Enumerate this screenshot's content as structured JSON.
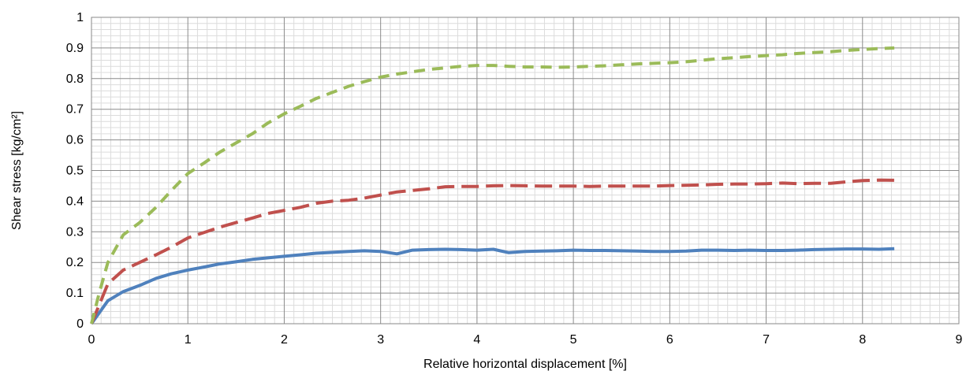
{
  "chart_data": {
    "type": "line",
    "title": "",
    "xlabel": "Relative horizontal displacement [%]",
    "ylabel": "Shear stress [kg/cm²]",
    "xlim": [
      0,
      9
    ],
    "ylim": [
      0,
      1
    ],
    "x_ticks": [
      "0",
      "1",
      "2",
      "3",
      "4",
      "5",
      "6",
      "7",
      "8",
      "9"
    ],
    "y_ticks": [
      "0",
      "0.1",
      "0.2",
      "0.3",
      "0.4",
      "0.5",
      "0.6",
      "0.7",
      "0.8",
      "0.9",
      "1"
    ],
    "grid": {
      "major": true,
      "minor": true
    },
    "legend": "none",
    "series": [
      {
        "color": "#4f81bd",
        "dash": "solid",
        "points": [
          [
            0,
            0
          ],
          [
            0.17,
            0.075
          ],
          [
            0.33,
            0.105
          ],
          [
            0.5,
            0.125
          ],
          [
            0.67,
            0.148
          ],
          [
            0.83,
            0.163
          ],
          [
            1.0,
            0.175
          ],
          [
            1.17,
            0.185
          ],
          [
            1.33,
            0.195
          ],
          [
            1.5,
            0.202
          ],
          [
            1.67,
            0.21
          ],
          [
            1.83,
            0.215
          ],
          [
            2.0,
            0.22
          ],
          [
            2.17,
            0.225
          ],
          [
            2.33,
            0.23
          ],
          [
            2.5,
            0.233
          ],
          [
            2.67,
            0.236
          ],
          [
            2.83,
            0.238
          ],
          [
            3.0,
            0.236
          ],
          [
            3.17,
            0.228
          ],
          [
            3.33,
            0.24
          ],
          [
            3.5,
            0.242
          ],
          [
            3.67,
            0.243
          ],
          [
            3.83,
            0.242
          ],
          [
            4.0,
            0.24
          ],
          [
            4.17,
            0.243
          ],
          [
            4.33,
            0.232
          ],
          [
            4.5,
            0.236
          ],
          [
            4.67,
            0.237
          ],
          [
            4.83,
            0.238
          ],
          [
            5.0,
            0.24
          ],
          [
            5.17,
            0.239
          ],
          [
            5.33,
            0.239
          ],
          [
            5.5,
            0.238
          ],
          [
            5.67,
            0.237
          ],
          [
            5.83,
            0.236
          ],
          [
            6.0,
            0.236
          ],
          [
            6.17,
            0.237
          ],
          [
            6.33,
            0.24
          ],
          [
            6.5,
            0.24
          ],
          [
            6.67,
            0.239
          ],
          [
            6.83,
            0.24
          ],
          [
            7.0,
            0.239
          ],
          [
            7.17,
            0.239
          ],
          [
            7.33,
            0.24
          ],
          [
            7.5,
            0.242
          ],
          [
            7.67,
            0.243
          ],
          [
            7.83,
            0.244
          ],
          [
            8.0,
            0.244
          ],
          [
            8.17,
            0.243
          ],
          [
            8.33,
            0.245
          ]
        ]
      },
      {
        "color": "#c0504d",
        "dash": "long-dash",
        "points": [
          [
            0,
            0
          ],
          [
            0.17,
            0.13
          ],
          [
            0.33,
            0.175
          ],
          [
            0.5,
            0.2
          ],
          [
            0.67,
            0.225
          ],
          [
            0.83,
            0.25
          ],
          [
            1.0,
            0.28
          ],
          [
            1.17,
            0.298
          ],
          [
            1.33,
            0.315
          ],
          [
            1.5,
            0.33
          ],
          [
            1.67,
            0.345
          ],
          [
            1.83,
            0.36
          ],
          [
            2.0,
            0.37
          ],
          [
            2.17,
            0.38
          ],
          [
            2.33,
            0.393
          ],
          [
            2.5,
            0.4
          ],
          [
            2.67,
            0.403
          ],
          [
            2.83,
            0.41
          ],
          [
            3.0,
            0.42
          ],
          [
            3.17,
            0.43
          ],
          [
            3.33,
            0.435
          ],
          [
            3.5,
            0.44
          ],
          [
            3.67,
            0.447
          ],
          [
            3.83,
            0.448
          ],
          [
            4.0,
            0.448
          ],
          [
            4.17,
            0.45
          ],
          [
            4.33,
            0.451
          ],
          [
            4.5,
            0.45
          ],
          [
            4.67,
            0.449
          ],
          [
            4.83,
            0.449
          ],
          [
            5.0,
            0.449
          ],
          [
            5.17,
            0.448
          ],
          [
            5.33,
            0.449
          ],
          [
            5.5,
            0.449
          ],
          [
            5.67,
            0.449
          ],
          [
            5.83,
            0.449
          ],
          [
            6.0,
            0.451
          ],
          [
            6.17,
            0.452
          ],
          [
            6.33,
            0.453
          ],
          [
            6.5,
            0.455
          ],
          [
            6.67,
            0.456
          ],
          [
            6.83,
            0.456
          ],
          [
            7.0,
            0.457
          ],
          [
            7.17,
            0.459
          ],
          [
            7.33,
            0.457
          ],
          [
            7.5,
            0.458
          ],
          [
            7.67,
            0.458
          ],
          [
            7.83,
            0.463
          ],
          [
            8.0,
            0.467
          ],
          [
            8.17,
            0.469
          ],
          [
            8.33,
            0.468
          ]
        ]
      },
      {
        "color": "#9bbb59",
        "dash": "short-dash",
        "points": [
          [
            0,
            0
          ],
          [
            0.08,
            0.1
          ],
          [
            0.17,
            0.2
          ],
          [
            0.33,
            0.29
          ],
          [
            0.5,
            0.33
          ],
          [
            0.67,
            0.38
          ],
          [
            0.83,
            0.435
          ],
          [
            1.0,
            0.49
          ],
          [
            1.17,
            0.525
          ],
          [
            1.33,
            0.56
          ],
          [
            1.5,
            0.59
          ],
          [
            1.67,
            0.62
          ],
          [
            1.83,
            0.655
          ],
          [
            2.0,
            0.685
          ],
          [
            2.17,
            0.71
          ],
          [
            2.33,
            0.735
          ],
          [
            2.5,
            0.755
          ],
          [
            2.67,
            0.775
          ],
          [
            2.83,
            0.79
          ],
          [
            3.0,
            0.805
          ],
          [
            3.17,
            0.815
          ],
          [
            3.33,
            0.822
          ],
          [
            3.5,
            0.83
          ],
          [
            3.67,
            0.835
          ],
          [
            3.83,
            0.84
          ],
          [
            4.0,
            0.843
          ],
          [
            4.17,
            0.843
          ],
          [
            4.33,
            0.84
          ],
          [
            4.5,
            0.838
          ],
          [
            4.67,
            0.838
          ],
          [
            4.83,
            0.837
          ],
          [
            5.0,
            0.838
          ],
          [
            5.17,
            0.84
          ],
          [
            5.33,
            0.842
          ],
          [
            5.5,
            0.845
          ],
          [
            5.67,
            0.848
          ],
          [
            5.83,
            0.85
          ],
          [
            6.0,
            0.852
          ],
          [
            6.17,
            0.855
          ],
          [
            6.33,
            0.86
          ],
          [
            6.5,
            0.865
          ],
          [
            6.67,
            0.868
          ],
          [
            6.83,
            0.872
          ],
          [
            7.0,
            0.875
          ],
          [
            7.17,
            0.878
          ],
          [
            7.33,
            0.882
          ],
          [
            7.5,
            0.885
          ],
          [
            7.67,
            0.888
          ],
          [
            7.83,
            0.892
          ],
          [
            8.0,
            0.895
          ],
          [
            8.17,
            0.898
          ],
          [
            8.33,
            0.9
          ]
        ]
      }
    ]
  }
}
